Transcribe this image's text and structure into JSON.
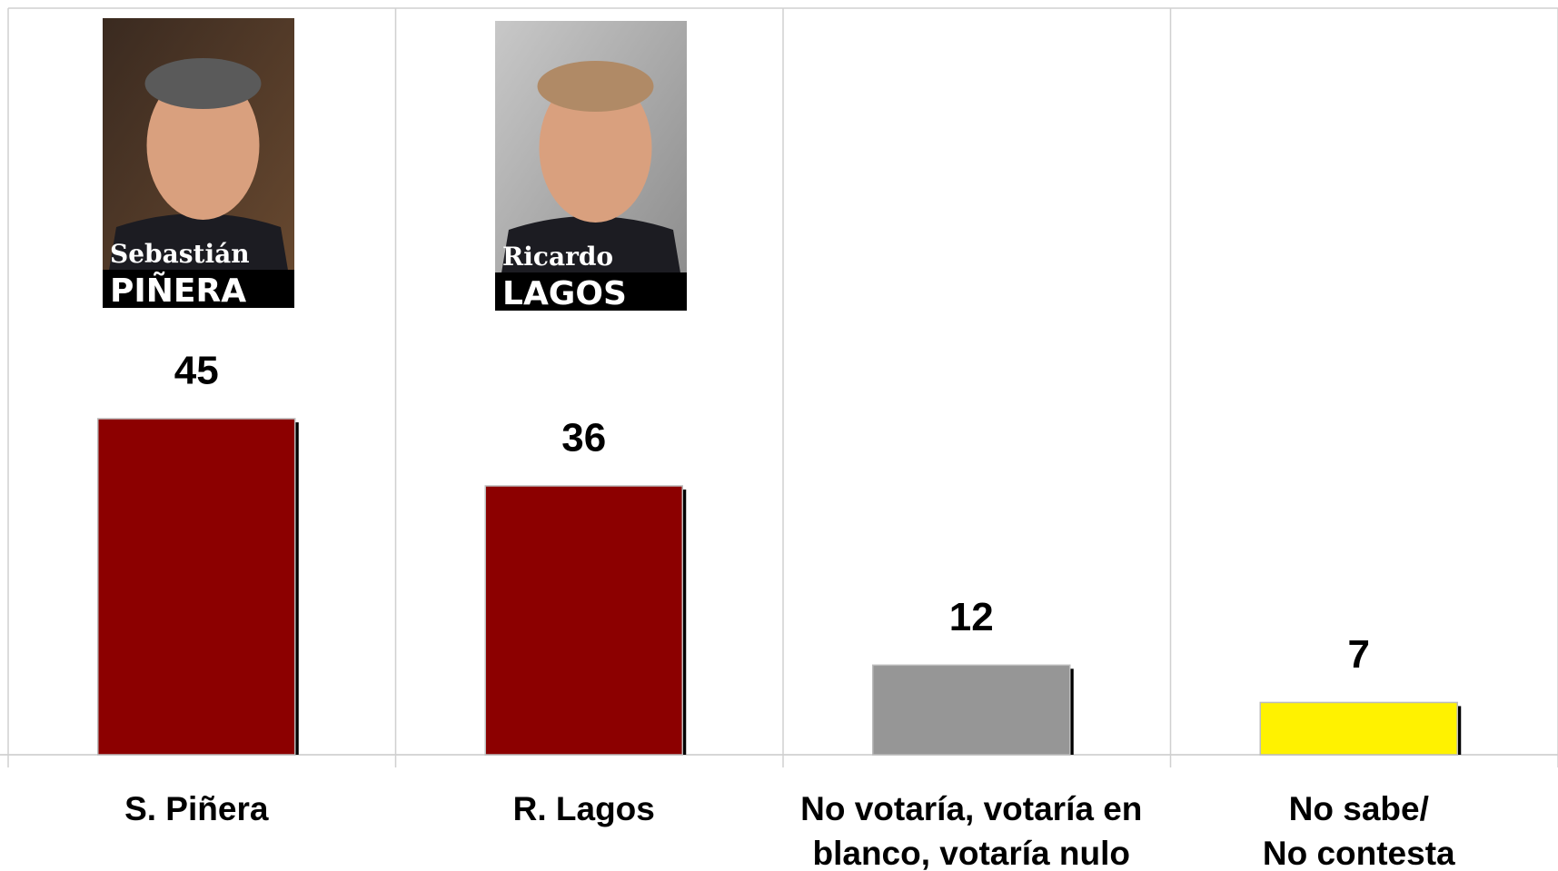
{
  "chart_data": {
    "type": "bar",
    "categories": [
      "S. Piñera",
      "R. Lagos",
      "No votaría, votaría en\nblanco, votaría nulo",
      "No sabe/\nNo contesta"
    ],
    "values": [
      45,
      36,
      12,
      7
    ],
    "colors": [
      "#8c0000",
      "#8c0000",
      "#969696",
      "#fff200"
    ],
    "photos": [
      {
        "first": "Sebastián",
        "last": "PIÑERA"
      },
      {
        "first": "Ricardo",
        "last": "LAGOS"
      }
    ]
  }
}
